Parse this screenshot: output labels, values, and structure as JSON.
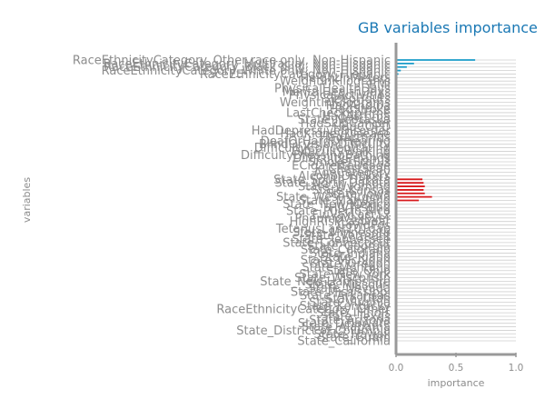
{
  "chart_data": {
    "type": "bar",
    "orientation": "horizontal",
    "title": "GB variables importance",
    "xlabel": "importance",
    "ylabel": "variables",
    "xlim": [
      0,
      1
    ],
    "xticks": [
      "0.0",
      "0.5",
      "1.0"
    ],
    "grid": true,
    "legend": "none",
    "colors": {
      "bar_blue": "#1a9bc8",
      "bar_red": "#d7191c",
      "grid": "#cfcfcf",
      "axis": "#999999"
    },
    "categories": [
      "RaceEthnicityCategory_Other race only, Non-Hispanic",
      "RaceEthnicityCategory_Multiracial, Non-Hispanic",
      "RaceEthnicityCategory_Black only, Non-Hispanic",
      "RaceEthnicityCategory_White only, Non-Hispanic",
      "RaceEthnicityCategory_Hispanic",
      "HeightInMeters",
      "WeightInKilograms",
      "BMI",
      "PhysicalHealthDays",
      "MentalHealthDays",
      "PhysicalActivities",
      "SleepHours",
      "WeightInKilograms",
      "HadAngina",
      "HadStroke",
      "LastCheckupTime",
      "HadAsthma",
      "State_Nebraska",
      "HadSkinCancer",
      "HadCOPD",
      "HadDepressiveDisorder",
      "HadKidneyDisease",
      "HadArthritis",
      "DeafOrHardOfHearing",
      "BlindOrVisionDifficulty",
      "DifficultyConcentrating",
      "DifficultyWalking",
      "DifficultyDressingBathing",
      "DifficultyErrands",
      "SmokerStatus",
      "ECigaretteUsage",
      "ChestScan",
      "AgeCategory",
      "AlcoholDrinkers",
      "State_South Dakota",
      "State_North Dakota",
      "State_Wyoming",
      "State_Kansas",
      "State_Iowa",
      "State_West Virginia",
      "State_Maryland",
      "State_New Mexico",
      "HIVTesting",
      "State_Puerto Rico",
      "FluVaxLast12",
      "PneumoVaxEver",
      "HighRiskLastYear",
      "CovidPos",
      "TetanusLast10Tdap",
      "State_Minnesota",
      "State_Vermont",
      "State_Tennessee",
      "State_Connecticut",
      "State_Georgia",
      "State_Colorado",
      "State_Indiana",
      "State_Idaho",
      "State_Michigan",
      "State_Oregon",
      "State_Montana",
      "State_Ohio",
      "State_New York",
      "State_Wisconsin",
      "State_New Hampshire",
      "State_Missouri",
      "State_Nevada",
      "State_Mississippi",
      "State_Arkansas",
      "State_Utah",
      "State_Virginia",
      "State_Kentucky",
      "RaceEthnicityCategory_Other",
      "State_Illinois",
      "State_Texas",
      "State_Arizona",
      "State_Delaware",
      "State_Alabama",
      "State_District of Columbia",
      "State_Hawaii",
      "State_Guam",
      "State_California"
    ],
    "values": [
      0.66,
      0.15,
      0.09,
      0.04,
      0.02,
      0.012,
      0.01,
      0.009,
      0.009,
      0.008,
      0.008,
      0.008,
      0.007,
      0.007,
      0.006,
      0.006,
      0.006,
      0.005,
      0.005,
      0.005,
      0.005,
      0.005,
      0.004,
      0.004,
      0.004,
      0.004,
      0.004,
      0.004,
      0.004,
      0.004,
      0.004,
      0.003,
      0.003,
      0.003,
      0.22,
      0.23,
      0.24,
      0.23,
      0.24,
      0.3,
      0.19,
      0.003,
      0.003,
      0.003,
      0.003,
      0.003,
      0.003,
      0.003,
      0.003,
      0.003,
      0.003,
      0.003,
      0.002,
      0.002,
      0.002,
      0.002,
      0.002,
      0.002,
      0.002,
      0.002,
      0.002,
      0.002,
      0.002,
      0.002,
      0.002,
      0.002,
      0.002,
      0.002,
      0.002,
      0.002,
      0.002,
      0.002,
      0.002,
      0.002,
      0.002,
      0.002,
      0.002,
      0.002,
      0.002,
      0.002,
      0.002
    ],
    "bar_colors": [
      "blue",
      "blue",
      "blue",
      "blue",
      "blue",
      "blue",
      "blue",
      "blue",
      "blue",
      "blue",
      "blue",
      "blue",
      "blue",
      "blue",
      "blue",
      "blue",
      "blue",
      "blue",
      "blue",
      "blue",
      "blue",
      "blue",
      "blue",
      "blue",
      "blue",
      "blue",
      "blue",
      "blue",
      "blue",
      "blue",
      "blue",
      "blue",
      "blue",
      "blue",
      "red",
      "red",
      "red",
      "red",
      "red",
      "red",
      "red",
      "blue",
      "blue",
      "blue",
      "blue",
      "blue",
      "blue",
      "blue",
      "blue",
      "blue",
      "blue",
      "blue",
      "blue",
      "blue",
      "blue",
      "blue",
      "blue",
      "blue",
      "blue",
      "blue",
      "blue",
      "blue",
      "blue",
      "blue",
      "blue",
      "blue",
      "blue",
      "blue",
      "blue",
      "blue",
      "blue",
      "blue",
      "blue",
      "blue",
      "blue",
      "blue",
      "blue",
      "blue",
      "blue",
      "blue",
      "blue"
    ]
  }
}
